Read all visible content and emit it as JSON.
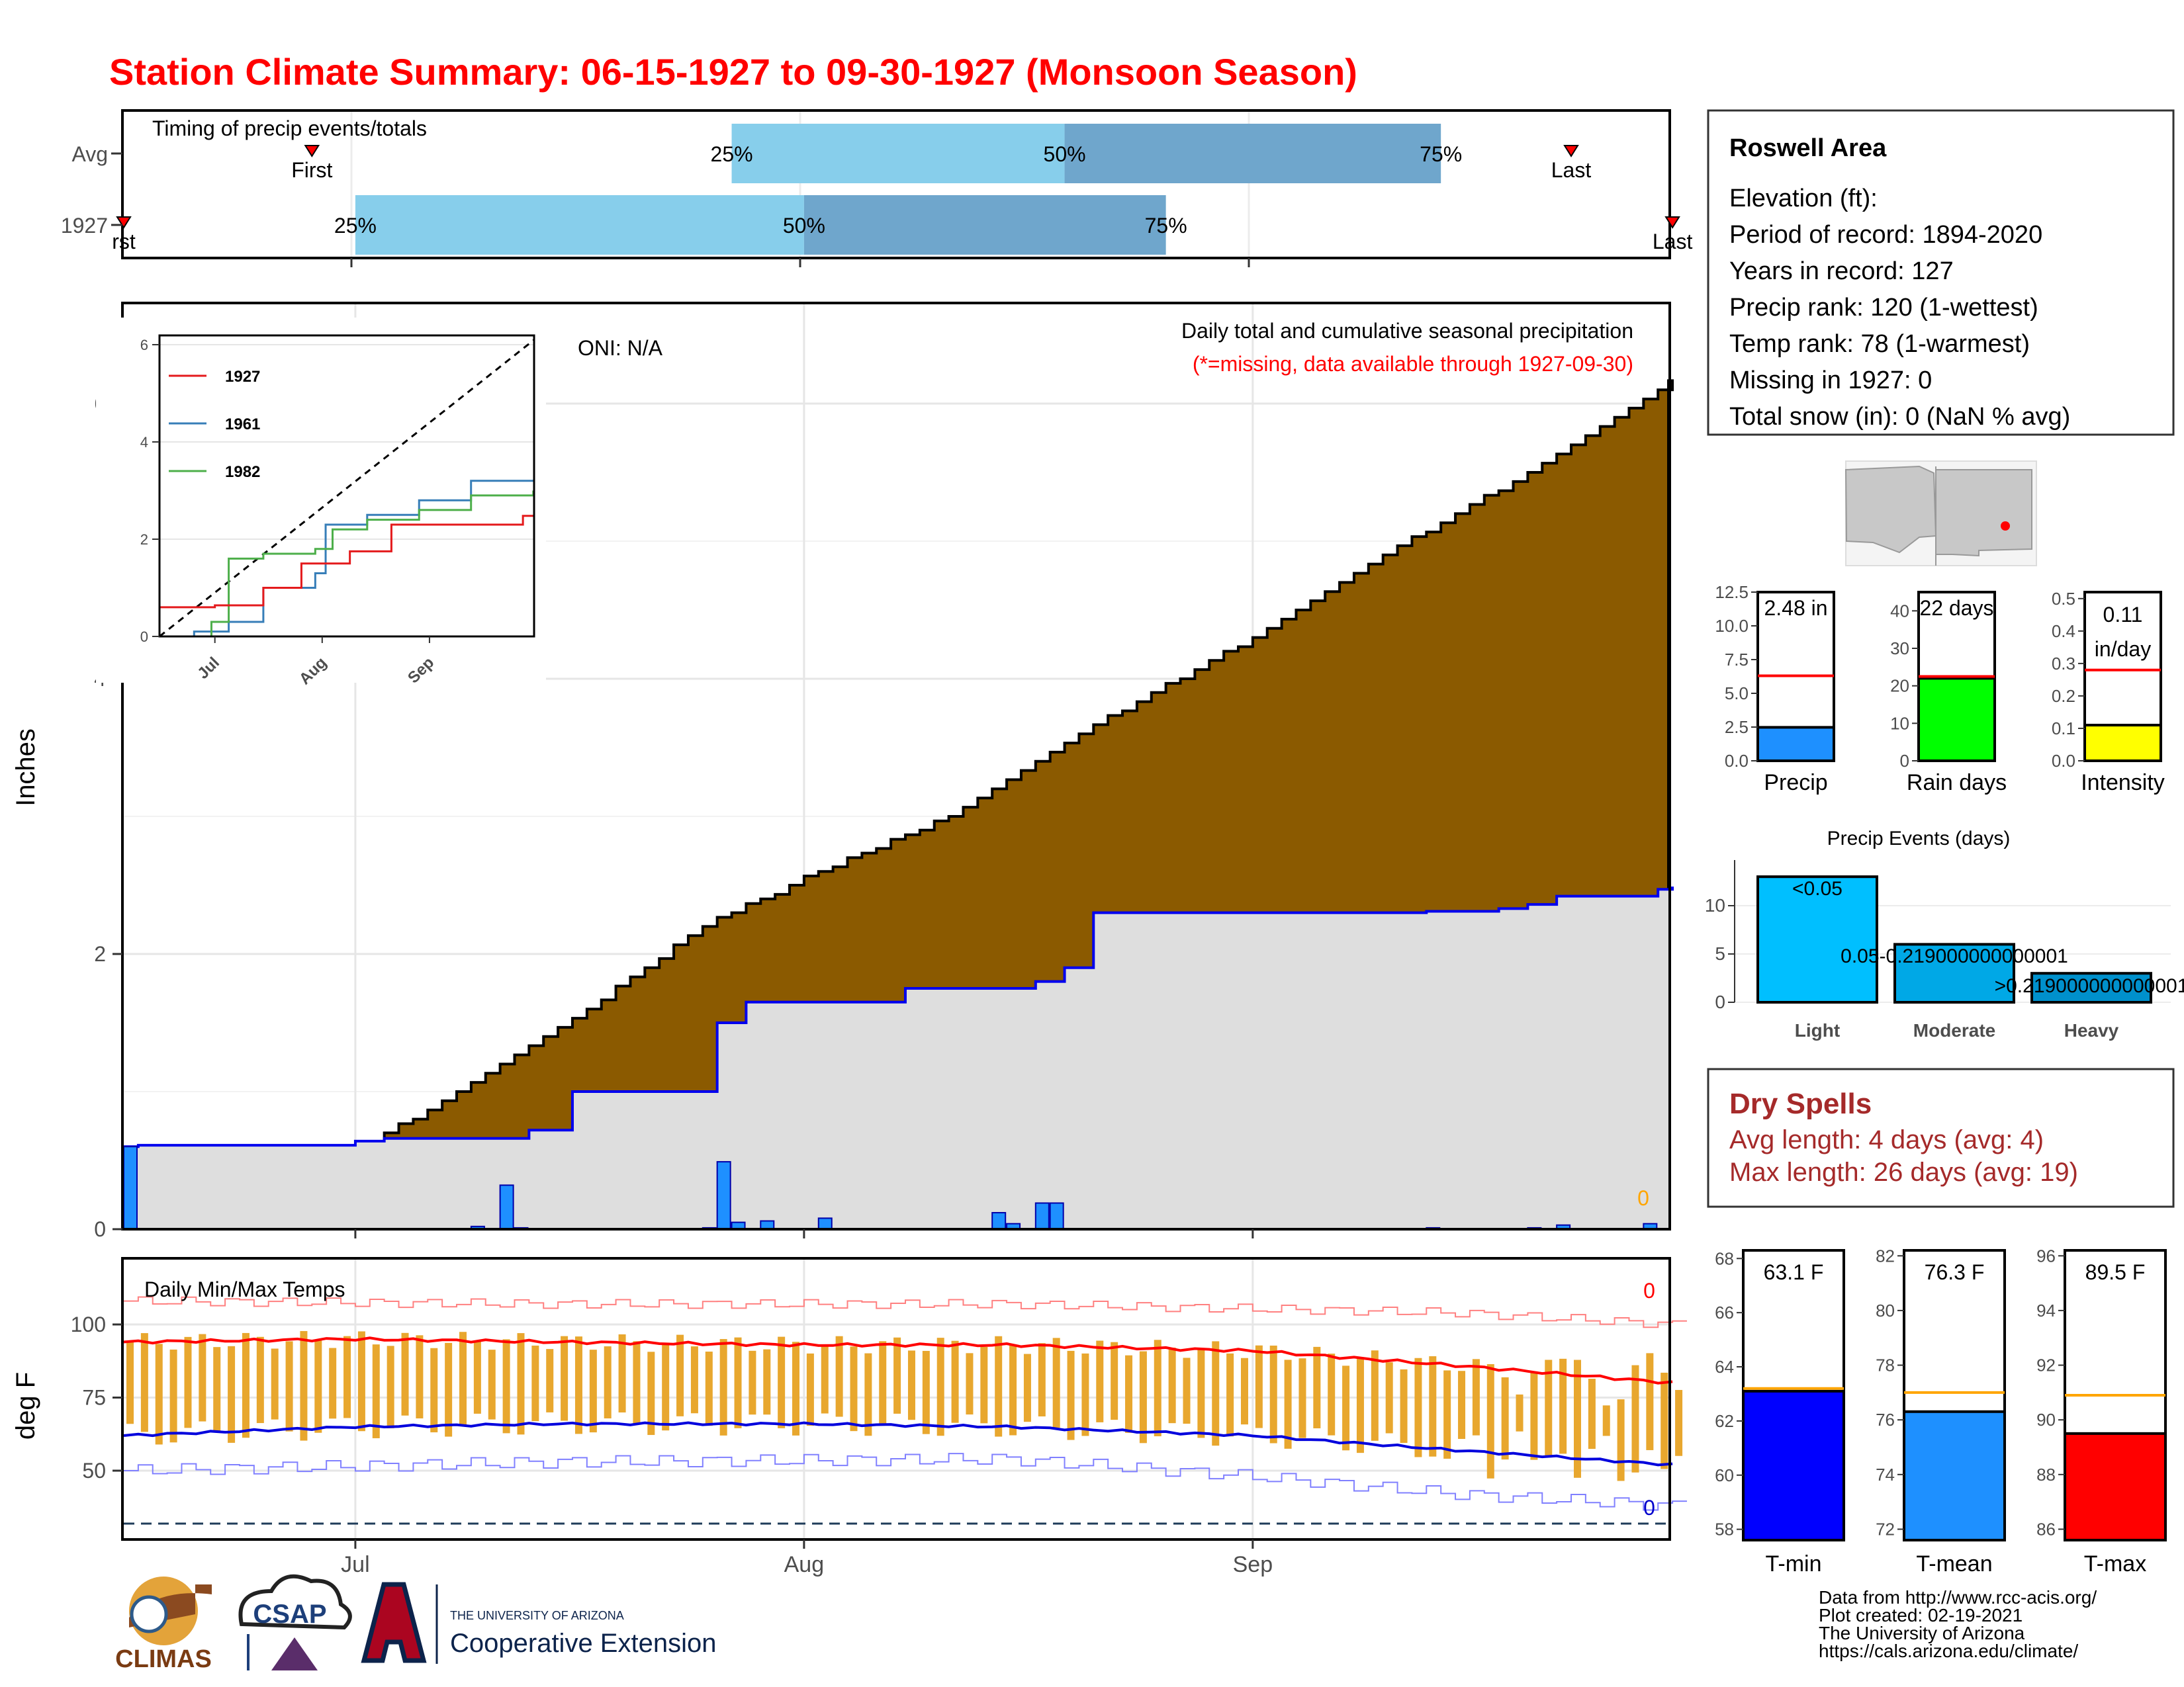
{
  "title": "Station Climate Summary: 06-15-1927 to 09-30-1927 (Monsoon Season)",
  "colors": {
    "title": "#ff0000",
    "light_blue": "#87ceeb",
    "mid_blue": "#6fa6cc",
    "brown": "#8b5a00",
    "green": "#008b00",
    "gray_fill": "#dedede",
    "bar_blue": "#1e90ff",
    "dry_red": "#a52a2a",
    "orange": "#e8a72e"
  },
  "timing": {
    "label": "Timing of precip events/totals",
    "rows": [
      {
        "name": "Avg",
        "q25": "25%",
        "q50": "50%",
        "q75": "75%",
        "first": "First",
        "last": "Last",
        "first_date": "1927-06-28",
        "q25_date": "1927-07-27",
        "q50_date": "1927-08-19",
        "q75_date": "1927-09-14",
        "last_date": "1927-09-23"
      },
      {
        "name": "1927",
        "q25": "25%",
        "q50": "50%",
        "q75": "75%",
        "first": "rst",
        "last": "Last",
        "first_date": "1927-06-15",
        "q25_date": "1927-07-01",
        "q50_date": "1927-08-01",
        "q75_date": "1927-08-26",
        "last_date": "1927-09-30"
      }
    ]
  },
  "main": {
    "ylabel": "Inches",
    "yticks": [
      "0",
      "2",
      "4",
      "6"
    ],
    "oni": "ONI: N/A",
    "note1": "Daily total and cumulative seasonal precipitation",
    "note2": "(*=missing, data available through 1927-09-30)",
    "missing_count": "0",
    "xticks": [
      "Jul",
      "Aug",
      "Sep"
    ]
  },
  "inset": {
    "yticks": [
      "0",
      "2",
      "4",
      "6"
    ],
    "xticks": [
      "Jul",
      "Aug",
      "Sep"
    ],
    "legend": [
      {
        "name": "1927",
        "color": "#e41a1c"
      },
      {
        "name": "1961",
        "color": "#377eb8"
      },
      {
        "name": "1982",
        "color": "#4daf4a"
      }
    ]
  },
  "temps": {
    "ylabel": "deg F",
    "label": "Daily Min/Max Temps",
    "yticks": [
      "50",
      "75",
      "100"
    ],
    "max_missing": "0",
    "min_missing": "0"
  },
  "station": {
    "name": "Roswell Area",
    "lines": [
      "Elevation (ft):",
      "Period of record: 1894-2020",
      "Years in record: 127",
      "Precip rank: 120 (1-wettest)",
      "Temp rank: 78 (1-warmest)",
      "Missing in 1927: 0",
      "Total snow (in): 0 (NaN % avg)"
    ]
  },
  "mini_bars": [
    {
      "name": "Precip",
      "value": 2.48,
      "avg": 6.3,
      "label": "2.48 in",
      "ymax": 12.5,
      "ticks": [
        "0.0",
        "2.5",
        "5.0",
        "7.5",
        "10.0",
        "12.5"
      ],
      "tickvals": [
        0,
        2.5,
        5,
        7.5,
        10,
        12.5
      ],
      "color": "#1e90ff"
    },
    {
      "name": "Rain days",
      "value": 22,
      "avg": 22.5,
      "label": "22 days",
      "ymax": 45,
      "ticks": [
        "0",
        "10",
        "20",
        "30",
        "40"
      ],
      "tickvals": [
        0,
        10,
        20,
        30,
        40
      ],
      "color": "#00ff00"
    },
    {
      "name": "Intensity",
      "value": 0.11,
      "avg": 0.28,
      "label": "0.11 in/day",
      "label1": "0.11",
      "label2": "in/day",
      "ymax": 0.52,
      "ticks": [
        "0.0",
        "0.1",
        "0.2",
        "0.3",
        "0.4",
        "0.5"
      ],
      "tickvals": [
        0,
        0.1,
        0.2,
        0.3,
        0.4,
        0.5
      ],
      "color": "#ffff00"
    }
  ],
  "events": {
    "title": "Precip Events (days)",
    "categories": [
      "Light",
      "Moderate",
      "Heavy"
    ],
    "values": [
      13,
      6,
      3
    ],
    "labels": [
      "<0.05",
      "0.05-0.219000000000001",
      ">0.219000000000001"
    ],
    "yticks": [
      "0",
      "5",
      "10"
    ],
    "colors": [
      "#00bfff",
      "#00a8e6",
      "#0090cc"
    ]
  },
  "dry": {
    "title": "Dry Spells",
    "avg": "Avg length: 4 days (avg: 4)",
    "max": "Max length: 26 days (avg: 19)"
  },
  "temp_bars": [
    {
      "name": "T-min",
      "value": 63.1,
      "avg": 63.2,
      "label": "63.1 F",
      "ymin": 57.6,
      "ymax": 68.3,
      "ticks": [
        "58",
        "60",
        "62",
        "64",
        "66",
        "68"
      ],
      "tickvals": [
        58,
        60,
        62,
        64,
        66,
        68
      ],
      "color": "#0000ff"
    },
    {
      "name": "T-mean",
      "value": 76.3,
      "avg": 77,
      "label": "76.3 F",
      "ymin": 71.6,
      "ymax": 82.2,
      "ticks": [
        "72",
        "74",
        "76",
        "78",
        "80",
        "82"
      ],
      "tickvals": [
        72,
        74,
        76,
        78,
        80,
        82
      ],
      "color": "#1e90ff"
    },
    {
      "name": "T-max",
      "value": 89.5,
      "avg": 90.9,
      "label": "89.5 F",
      "ymin": 85.6,
      "ymax": 96.2,
      "ticks": [
        "86",
        "88",
        "90",
        "92",
        "94",
        "96"
      ],
      "tickvals": [
        86,
        88,
        90,
        92,
        94,
        96
      ],
      "color": "#ff0000"
    }
  ],
  "credits": [
    "Data from http://www.rcc-acis.org/",
    "Plot created: 02-19-2021",
    "The University of Arizona",
    "https://cals.arizona.edu/climate/"
  ],
  "logos": {
    "climas": "CLIMAS",
    "csap": "CSAP",
    "ua_small": "THE UNIVERSITY OF ARIZONA",
    "coop": "Cooperative Extension"
  },
  "chart_data": [
    {
      "type": "area",
      "title": "Daily total and cumulative seasonal precipitation",
      "ylabel": "Inches",
      "ylim": [
        0,
        6.7
      ],
      "xlim": [
        "1927-06-15",
        "1927-09-30"
      ],
      "series": [
        {
          "name": "1927",
          "type": "step",
          "x": [
            "1927-06-15",
            "1927-06-16",
            "1927-07-01",
            "1927-07-03",
            "1927-07-13",
            "1927-07-16",
            "1927-07-26",
            "1927-07-28",
            "1927-08-08",
            "1927-08-17",
            "1927-08-19",
            "1927-08-21",
            "1927-09-13",
            "1927-09-18",
            "1927-09-20",
            "1927-09-22",
            "1927-09-29",
            "1927-09-30"
          ],
          "y": [
            0.6,
            0.61,
            0.64,
            0.66,
            0.72,
            1.0,
            1.5,
            1.65,
            1.75,
            1.8,
            1.9,
            2.3,
            2.31,
            2.33,
            2.36,
            2.42,
            2.47,
            2.48
          ]
        },
        {
          "name": "Avg",
          "type": "step",
          "x": [
            "1927-06-15",
            "1927-06-25",
            "1927-07-05",
            "1927-07-15",
            "1927-07-25",
            "1927-08-01",
            "1927-08-10",
            "1927-08-20",
            "1927-08-25",
            "1927-09-01",
            "1927-09-10",
            "1927-09-20",
            "1927-09-30"
          ],
          "y": [
            0.05,
            0.3,
            0.8,
            1.45,
            2.2,
            2.55,
            2.95,
            3.6,
            3.9,
            4.3,
            4.9,
            5.5,
            6.15
          ]
        }
      ],
      "daily": {
        "x": [
          "1927-06-15",
          "1927-07-09",
          "1927-07-11",
          "1927-07-12",
          "1927-07-25",
          "1927-07-26",
          "1927-07-27",
          "1927-07-29",
          "1927-08-02",
          "1927-08-14",
          "1927-08-15",
          "1927-08-17",
          "1927-08-18",
          "1927-09-13",
          "1927-09-20",
          "1927-09-22",
          "1927-09-28"
        ],
        "y": [
          0.6,
          0.02,
          0.32,
          0.01,
          0.01,
          0.49,
          0.05,
          0.06,
          0.08,
          0.12,
          0.04,
          0.19,
          0.19,
          0.01,
          0.01,
          0.03,
          0.04
        ]
      }
    },
    {
      "type": "line",
      "title": "Daily Min/Max Temps",
      "ylabel": "deg F",
      "ylim": [
        30,
        120
      ],
      "series": [
        {
          "name": "avg max",
          "x": [
            "1927-06-15",
            "1927-07-01",
            "1927-07-15",
            "1927-08-01",
            "1927-08-15",
            "1927-09-01",
            "1927-09-15",
            "1927-09-30"
          ],
          "y": [
            94,
            95,
            94,
            93,
            93,
            91,
            86,
            80
          ]
        },
        {
          "name": "avg min",
          "x": [
            "1927-06-15",
            "1927-07-01",
            "1927-07-15",
            "1927-08-01",
            "1927-08-15",
            "1927-09-01",
            "1927-09-15",
            "1927-09-30"
          ],
          "y": [
            62,
            65,
            66,
            66,
            65,
            62,
            57,
            52
          ]
        },
        {
          "name": "record max",
          "x": [
            "1927-06-15",
            "1927-07-15",
            "1927-08-15",
            "1927-09-15",
            "1927-09-30"
          ],
          "y": [
            108,
            107,
            107,
            104,
            100
          ]
        },
        {
          "name": "record min",
          "x": [
            "1927-06-15",
            "1927-07-15",
            "1927-08-15",
            "1927-09-01",
            "1927-09-15",
            "1927-09-30"
          ],
          "y": [
            50,
            53,
            54,
            48,
            42,
            38
          ]
        }
      ],
      "daily_range": {
        "start": "1927-06-15",
        "days": 108,
        "max_center": 94,
        "max_amp": 6,
        "min_center": 64,
        "min_amp": 5
      }
    },
    {
      "type": "bar",
      "title": "Precip Events (days)",
      "categories": [
        "Light",
        "Moderate",
        "Heavy"
      ],
      "values": [
        13,
        6,
        3
      ]
    },
    {
      "type": "bar",
      "categories": [
        "Precip",
        "Rain days",
        "Intensity"
      ],
      "values": [
        2.48,
        22,
        0.11
      ]
    },
    {
      "type": "bar",
      "categories": [
        "T-min",
        "T-mean",
        "T-max"
      ],
      "values": [
        63.1,
        76.3,
        89.5
      ]
    }
  ]
}
